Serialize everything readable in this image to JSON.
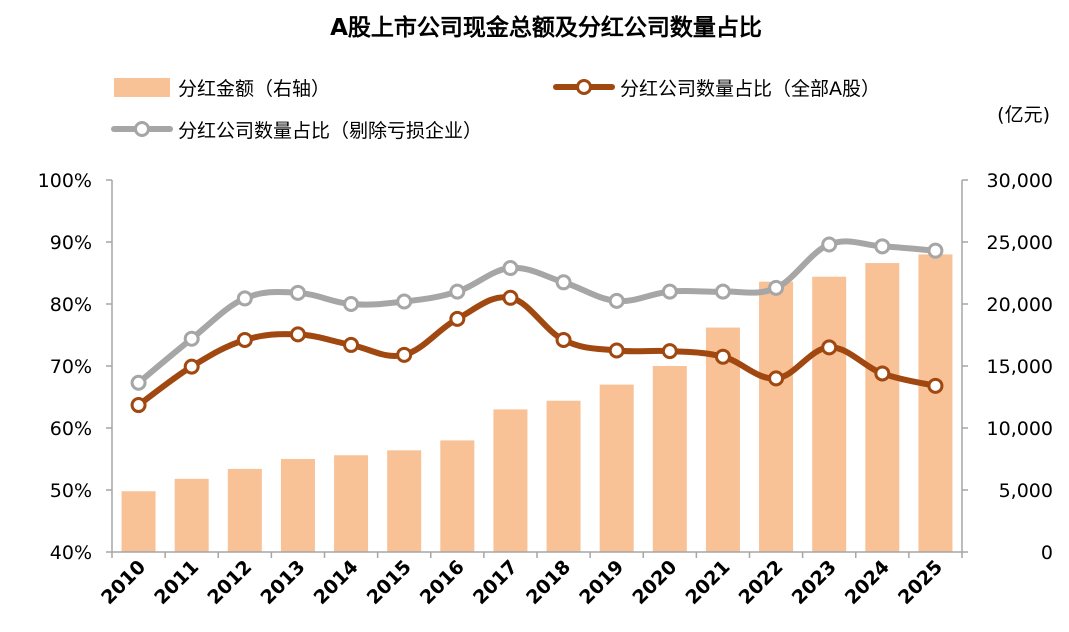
{
  "chart_data": {
    "type": "bar",
    "title": "A股上市公司现金总额及分红公司数量占比",
    "right_axis_unit": "(亿元)",
    "categories": [
      "2010",
      "2011",
      "2012",
      "2013",
      "2014",
      "2015",
      "2016",
      "2017",
      "2018",
      "2019",
      "2020",
      "2021",
      "2022",
      "2023",
      "2024",
      "2025"
    ],
    "series": [
      {
        "name": "分红金额（右轴）",
        "type": "bar",
        "axis": "right",
        "color": "#F8C196",
        "values": [
          4900,
          5900,
          6700,
          7500,
          7800,
          8200,
          9000,
          11500,
          12200,
          13500,
          15000,
          18100,
          21800,
          22200,
          23300,
          24000
        ]
      },
      {
        "name": "分红公司数量占比（全部A股）",
        "type": "line",
        "axis": "left",
        "color": "#A0480F",
        "values": [
          63.7,
          69.9,
          74.2,
          75.1,
          73.4,
          71.8,
          77.6,
          81.0,
          74.2,
          72.5,
          72.4,
          71.5,
          68.0,
          73.0,
          68.8,
          66.8
        ]
      },
      {
        "name": "分红公司数量占比（剔除亏损企业）",
        "type": "line",
        "axis": "left",
        "color": "#A6A6A6",
        "values": [
          67.3,
          74.4,
          80.9,
          81.8,
          80.0,
          80.4,
          82.0,
          85.8,
          83.5,
          80.5,
          82.0,
          82.0,
          82.6,
          89.6,
          89.3,
          88.6
        ]
      }
    ],
    "left_axis": {
      "ylim": [
        40,
        100
      ],
      "ticks": [
        "40%",
        "50%",
        "60%",
        "70%",
        "80%",
        "90%",
        "100%"
      ]
    },
    "right_axis": {
      "ylim": [
        0,
        30000
      ],
      "ticks": [
        "0",
        "5,000",
        "10,000",
        "15,000",
        "20,000",
        "25,000",
        "30,000"
      ]
    },
    "grid": false,
    "legend_position": "top-left"
  }
}
